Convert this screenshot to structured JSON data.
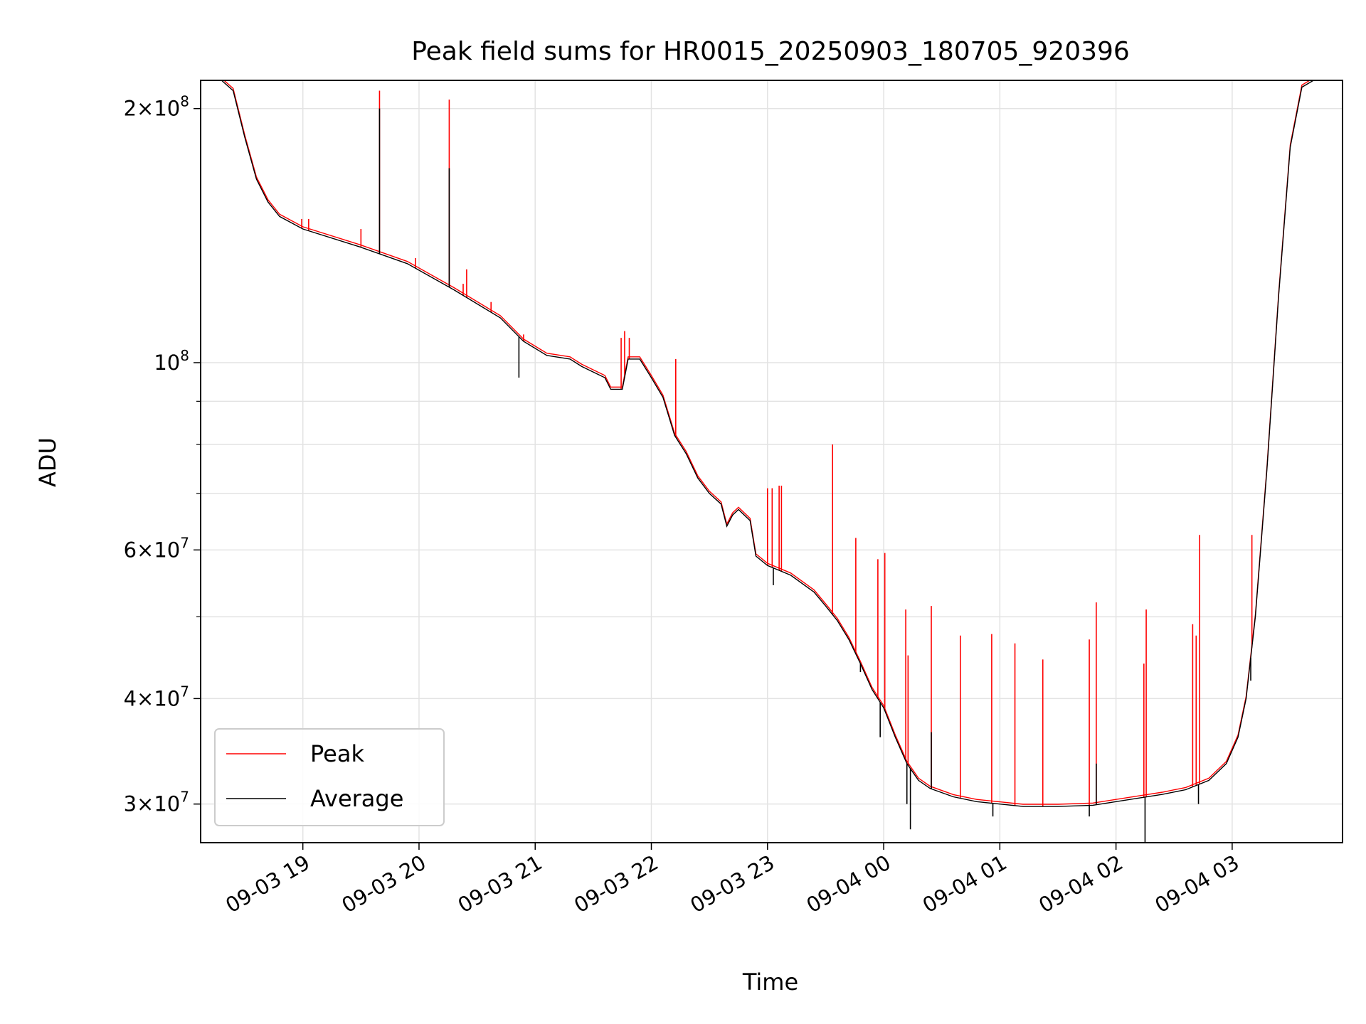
{
  "chart_data": {
    "type": "line",
    "title": "Peak field sums for HR0015_20250903_180705_920396",
    "xlabel": "Time",
    "ylabel": "ADU",
    "yscale": "log",
    "grid": true,
    "legend_position": "lower-left",
    "x_unit": "hours after 2025-09-03 18:00",
    "x_range": [
      0.12,
      9.95
    ],
    "y_range": [
      27000000,
      216000000
    ],
    "x_ticks": [
      {
        "x": 1,
        "label": "09-03 19"
      },
      {
        "x": 2,
        "label": "09-03 20"
      },
      {
        "x": 3,
        "label": "09-03 21"
      },
      {
        "x": 4,
        "label": "09-03 22"
      },
      {
        "x": 5,
        "label": "09-03 23"
      },
      {
        "x": 6,
        "label": "09-04 00"
      },
      {
        "x": 7,
        "label": "09-04 01"
      },
      {
        "x": 8,
        "label": "09-04 02"
      },
      {
        "x": 9,
        "label": "09-04 03"
      }
    ],
    "y_major_ticks": [
      {
        "y": 30000000,
        "mant": "3",
        "exp": "7"
      },
      {
        "y": 40000000,
        "mant": "4",
        "exp": "7"
      },
      {
        "y": 60000000,
        "mant": "6",
        "exp": "7"
      },
      {
        "y": 100000000,
        "mant": "",
        "exp": "8"
      },
      {
        "y": 200000000,
        "mant": "2",
        "exp": "8"
      }
    ],
    "y_minor_ticks": [
      50000000,
      70000000,
      80000000,
      90000000
    ],
    "colors": {
      "peak": "#ff0000",
      "average": "#000000"
    },
    "average_curve": [
      [
        0.12,
        216000000
      ],
      [
        0.3,
        216000000
      ],
      [
        0.4,
        210000000
      ],
      [
        0.5,
        185000000
      ],
      [
        0.6,
        165000000
      ],
      [
        0.7,
        155000000
      ],
      [
        0.8,
        149000000
      ],
      [
        1.0,
        144000000
      ],
      [
        1.5,
        137000000
      ],
      [
        1.9,
        131000000
      ],
      [
        2.3,
        122000000
      ],
      [
        2.7,
        113000000
      ],
      [
        2.9,
        106000000
      ],
      [
        3.1,
        102000000
      ],
      [
        3.3,
        101000000
      ],
      [
        3.4,
        99000000
      ],
      [
        3.6,
        96000000
      ],
      [
        3.65,
        93000000
      ],
      [
        3.75,
        93000000
      ],
      [
        3.8,
        101000000
      ],
      [
        3.9,
        101000000
      ],
      [
        4.0,
        96000000
      ],
      [
        4.1,
        91000000
      ],
      [
        4.2,
        82000000
      ],
      [
        4.3,
        78000000
      ],
      [
        4.4,
        73000000
      ],
      [
        4.5,
        70000000
      ],
      [
        4.6,
        68000000
      ],
      [
        4.65,
        64000000
      ],
      [
        4.7,
        66000000
      ],
      [
        4.75,
        67000000
      ],
      [
        4.85,
        65000000
      ],
      [
        4.9,
        59000000
      ],
      [
        5.0,
        57500000
      ],
      [
        5.2,
        56000000
      ],
      [
        5.4,
        53500000
      ],
      [
        5.5,
        51500000
      ],
      [
        5.6,
        49500000
      ],
      [
        5.7,
        47000000
      ],
      [
        5.8,
        44000000
      ],
      [
        5.9,
        41000000
      ],
      [
        6.0,
        39000000
      ],
      [
        6.1,
        36000000
      ],
      [
        6.2,
        33500000
      ],
      [
        6.3,
        32000000
      ],
      [
        6.4,
        31300000
      ],
      [
        6.6,
        30600000
      ],
      [
        6.8,
        30200000
      ],
      [
        7.0,
        30000000
      ],
      [
        7.2,
        29800000
      ],
      [
        7.5,
        29800000
      ],
      [
        7.8,
        29900000
      ],
      [
        8.0,
        30200000
      ],
      [
        8.2,
        30500000
      ],
      [
        8.4,
        30800000
      ],
      [
        8.6,
        31200000
      ],
      [
        8.8,
        32000000
      ],
      [
        8.95,
        33500000
      ],
      [
        9.05,
        36000000
      ],
      [
        9.12,
        40000000
      ],
      [
        9.2,
        50000000
      ],
      [
        9.3,
        75000000
      ],
      [
        9.4,
        120000000
      ],
      [
        9.5,
        180000000
      ],
      [
        9.6,
        212000000
      ],
      [
        9.7,
        216000000
      ],
      [
        9.95,
        216000000
      ]
    ],
    "peak_spikes": [
      [
        0.99,
        148000000
      ],
      [
        1.05,
        148000000
      ],
      [
        1.5,
        144000000
      ],
      [
        1.66,
        210000000
      ],
      [
        1.97,
        133000000
      ],
      [
        2.26,
        205000000
      ],
      [
        2.38,
        124000000
      ],
      [
        2.41,
        129000000
      ],
      [
        2.62,
        118000000
      ],
      [
        2.9,
        108000000
      ],
      [
        3.74,
        107000000
      ],
      [
        3.77,
        109000000
      ],
      [
        3.81,
        107000000
      ],
      [
        4.18,
        84000000
      ],
      [
        4.21,
        101000000
      ],
      [
        5.0,
        71000000
      ],
      [
        5.04,
        71000000
      ],
      [
        5.1,
        71500000
      ],
      [
        5.12,
        71500000
      ],
      [
        5.56,
        80000000
      ],
      [
        5.76,
        62000000
      ],
      [
        5.95,
        58500000
      ],
      [
        6.01,
        59500000
      ],
      [
        6.19,
        51000000
      ],
      [
        6.21,
        45000000
      ],
      [
        6.41,
        51500000
      ],
      [
        6.66,
        47500000
      ],
      [
        6.93,
        47700000
      ],
      [
        7.13,
        46500000
      ],
      [
        7.37,
        44500000
      ],
      [
        7.77,
        47000000
      ],
      [
        7.83,
        52000000
      ],
      [
        8.24,
        44000000
      ],
      [
        8.26,
        51000000
      ],
      [
        8.66,
        49000000
      ],
      [
        8.69,
        47500000
      ],
      [
        8.72,
        62500000
      ],
      [
        9.17,
        62500000
      ]
    ],
    "average_spikes": [
      [
        1.66,
        200000000,
        "up"
      ],
      [
        2.26,
        170000000,
        "up"
      ],
      [
        2.86,
        96000000,
        "down"
      ],
      [
        5.05,
        54500000,
        "down"
      ],
      [
        5.8,
        43000000,
        "down"
      ],
      [
        5.97,
        36000000,
        "down"
      ],
      [
        6.2,
        30000000,
        "down"
      ],
      [
        6.23,
        28000000,
        "down"
      ],
      [
        6.41,
        36500000,
        "up"
      ],
      [
        6.94,
        29000000,
        "down"
      ],
      [
        7.77,
        29000000,
        "down"
      ],
      [
        7.83,
        33500000,
        "up"
      ],
      [
        8.25,
        26000000,
        "down"
      ],
      [
        8.71,
        30000000,
        "down"
      ],
      [
        9.16,
        42000000,
        "down"
      ]
    ],
    "series": [
      {
        "name": "Peak"
      },
      {
        "name": "Average"
      }
    ]
  }
}
